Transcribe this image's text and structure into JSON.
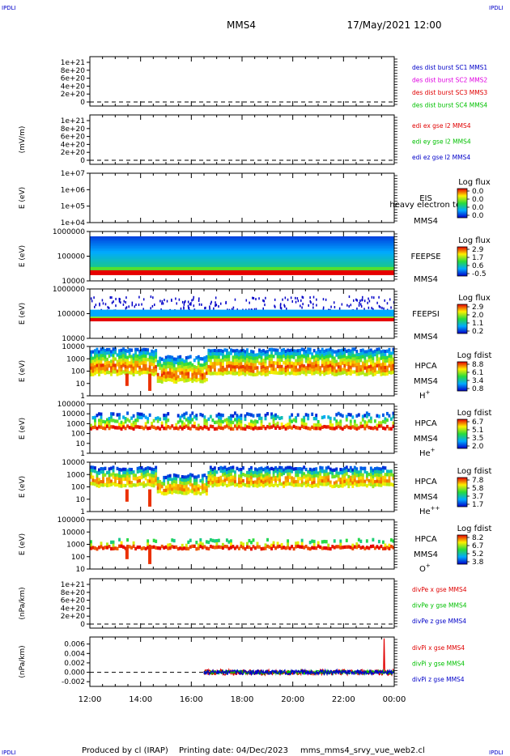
{
  "header": {
    "corner_labels": [
      "IPDLI",
      "IPDLI",
      "IPDLI",
      "IPDLI"
    ],
    "spacecraft": "MMS4",
    "datetime": "17/May/2021 12:00"
  },
  "footer": {
    "produced": "Produced by cl (IRAP)",
    "printing": "Printing date: 04/Dec/2023",
    "script": "mms_mms4_srvy_vue_web2.cl"
  },
  "colors": {
    "mms1": "#0000c8",
    "mms2": "#e000e0",
    "mms3": "#e00000",
    "mms4": "#00c000",
    "x_comp": "#e00000",
    "y_comp": "#00c000",
    "z_comp": "#0000c8"
  },
  "chart_data": {
    "type": "heatmap",
    "x_ticks": [
      "12:00",
      "14:00",
      "16:00",
      "18:00",
      "20:00",
      "22:00",
      "00:00"
    ],
    "xlim_hours": [
      12,
      24
    ],
    "panels": [
      {
        "id": "des-dist",
        "type": "line",
        "ylabel": "",
        "y_ticks": [
          "1e+21",
          "8e+20",
          "6e+20",
          "4e+20",
          "2e+20",
          "0"
        ],
        "legend": [
          {
            "text": "des dist burst SC1 MMS1",
            "color": "#0000c8"
          },
          {
            "text": "des dist burst SC2 MMS2",
            "color": "#e000e0"
          },
          {
            "text": "des dist burst SC3 MMS3",
            "color": "#e00000"
          },
          {
            "text": "des dist burst SC4 MMS4",
            "color": "#00c000"
          }
        ],
        "series": [],
        "zero_line": true
      },
      {
        "id": "edi-e",
        "type": "line",
        "ylabel": "(mV/m)",
        "y_ticks": [
          "1e+21",
          "8e+20",
          "6e+20",
          "4e+20",
          "2e+20",
          "0"
        ],
        "legend": [
          {
            "text": "edi ex gse l2 MMS4",
            "color": "#e00000"
          },
          {
            "text": "edi ey gse l2 MMS4",
            "color": "#00c000"
          },
          {
            "text": "edi ez gse l2 MMS4",
            "color": "#0000c8"
          }
        ],
        "series": [],
        "zero_line": true
      },
      {
        "id": "eis",
        "type": "heatmap",
        "ylabel": "E (eV)",
        "y_ticks": [
          "1e+07",
          "1e+06",
          "1e+05",
          "1e+04"
        ],
        "y_log": true,
        "instrument": "EIS",
        "probe": "MMS4",
        "extra_label": "heavy electron tof",
        "colorbar_title": "Log flux",
        "colorbar_ticks": [
          "0.0",
          "0.0",
          "0.0",
          "0.0"
        ],
        "coverage": null
      },
      {
        "id": "feepse",
        "type": "heatmap",
        "ylabel": "E (eV)",
        "y_ticks": [
          "1000000",
          "100000",
          "10000"
        ],
        "y_log": true,
        "instrument": "FEEPSE",
        "probe": "MMS4",
        "colorbar_title": "Log flux",
        "colorbar_ticks": [
          "2.9",
          "1.7",
          "0.6",
          "-0.5"
        ],
        "coverage": {
          "t_start": 12.0,
          "t_end": 24.0
        }
      },
      {
        "id": "feepsi",
        "type": "heatmap",
        "ylabel": "E (eV)",
        "y_ticks": [
          "1000000",
          "100000",
          "10000"
        ],
        "y_log": true,
        "instrument": "FEEPSI",
        "probe": "MMS4",
        "colorbar_title": "Log flux",
        "colorbar_ticks": [
          "2.9",
          "2.0",
          "1.1",
          "0.2"
        ],
        "coverage": {
          "t_start": 12.0,
          "t_end": 24.0
        }
      },
      {
        "id": "hpca-h",
        "type": "heatmap",
        "ylabel": "E (eV)",
        "y_ticks": [
          "10000",
          "1000",
          "100",
          "10",
          "1"
        ],
        "y_log": true,
        "instrument": "HPCA",
        "probe": "MMS4",
        "species": "H",
        "species_sup": "+",
        "colorbar_title": "Log fdist",
        "colorbar_ticks": [
          "8.8",
          "6.1",
          "3.4",
          "0.8"
        ],
        "coverage": {
          "t_start": 12.0,
          "t_end": 24.0
        }
      },
      {
        "id": "hpca-he",
        "type": "heatmap",
        "ylabel": "E (eV)",
        "y_ticks": [
          "100000",
          "10000",
          "1000",
          "100",
          "10",
          "1"
        ],
        "y_log": true,
        "instrument": "HPCA",
        "probe": "MMS4",
        "species": "He",
        "species_sup": "+",
        "colorbar_title": "Log fdist",
        "colorbar_ticks": [
          "6.7",
          "5.1",
          "3.5",
          "2.0"
        ],
        "coverage": {
          "t_start": 12.0,
          "t_end": 24.0
        }
      },
      {
        "id": "hpca-he2",
        "type": "heatmap",
        "ylabel": "E (eV)",
        "y_ticks": [
          "10000",
          "1000",
          "100",
          "10",
          "1"
        ],
        "y_log": true,
        "instrument": "HPCA",
        "probe": "MMS4",
        "species": "He",
        "species_sup": "++",
        "colorbar_title": "Log fdist",
        "colorbar_ticks": [
          "7.8",
          "5.8",
          "3.7",
          "1.7"
        ],
        "coverage": {
          "t_start": 12.0,
          "t_end": 24.0
        }
      },
      {
        "id": "hpca-o",
        "type": "heatmap",
        "ylabel": "E (eV)",
        "y_ticks": [
          "100000",
          "10000",
          "1000",
          "100",
          "10"
        ],
        "y_log": true,
        "instrument": "HPCA",
        "probe": "MMS4",
        "species": "O",
        "species_sup": "+",
        "colorbar_title": "Log fdist",
        "colorbar_ticks": [
          "8.2",
          "6.7",
          "5.2",
          "3.8"
        ],
        "coverage": {
          "t_start": 12.0,
          "t_end": 24.0
        }
      },
      {
        "id": "divpe",
        "type": "line",
        "ylabel": "(nPa/km)",
        "y_ticks": [
          "1e+21",
          "8e+20",
          "6e+20",
          "4e+20",
          "2e+20",
          "0"
        ],
        "legend": [
          {
            "text": "divPe x gse MMS4",
            "color": "#e00000"
          },
          {
            "text": "divPe y gse MMS4",
            "color": "#00c000"
          },
          {
            "text": "divPe z gse MMS4",
            "color": "#0000c8"
          }
        ],
        "series": [],
        "zero_line": true
      },
      {
        "id": "divpi",
        "type": "line",
        "ylabel": "(nPa/km)",
        "y_ticks": [
          "0.006",
          "0.004",
          "0.002",
          "0.000",
          "-0.002"
        ],
        "ylim": [
          -0.003,
          0.0075
        ],
        "legend": [
          {
            "text": "divPi x gse MMS4",
            "color": "#e00000"
          },
          {
            "text": "divPi y gse MMS4",
            "color": "#00c000"
          },
          {
            "text": "divPi z gse MMS4",
            "color": "#0000c8"
          }
        ],
        "series": [
          {
            "color": "#e00000",
            "t_start": 16.5,
            "t_end": 24.0,
            "amplitude": 0.0006,
            "spike_t": 23.6,
            "spike_value": 0.0072
          },
          {
            "color": "#00c000",
            "t_start": 16.5,
            "t_end": 24.0,
            "amplitude": 0.0004
          },
          {
            "color": "#0000c8",
            "t_start": 16.5,
            "t_end": 24.0,
            "amplitude": 0.0005
          }
        ],
        "zero_line": true
      }
    ]
  }
}
